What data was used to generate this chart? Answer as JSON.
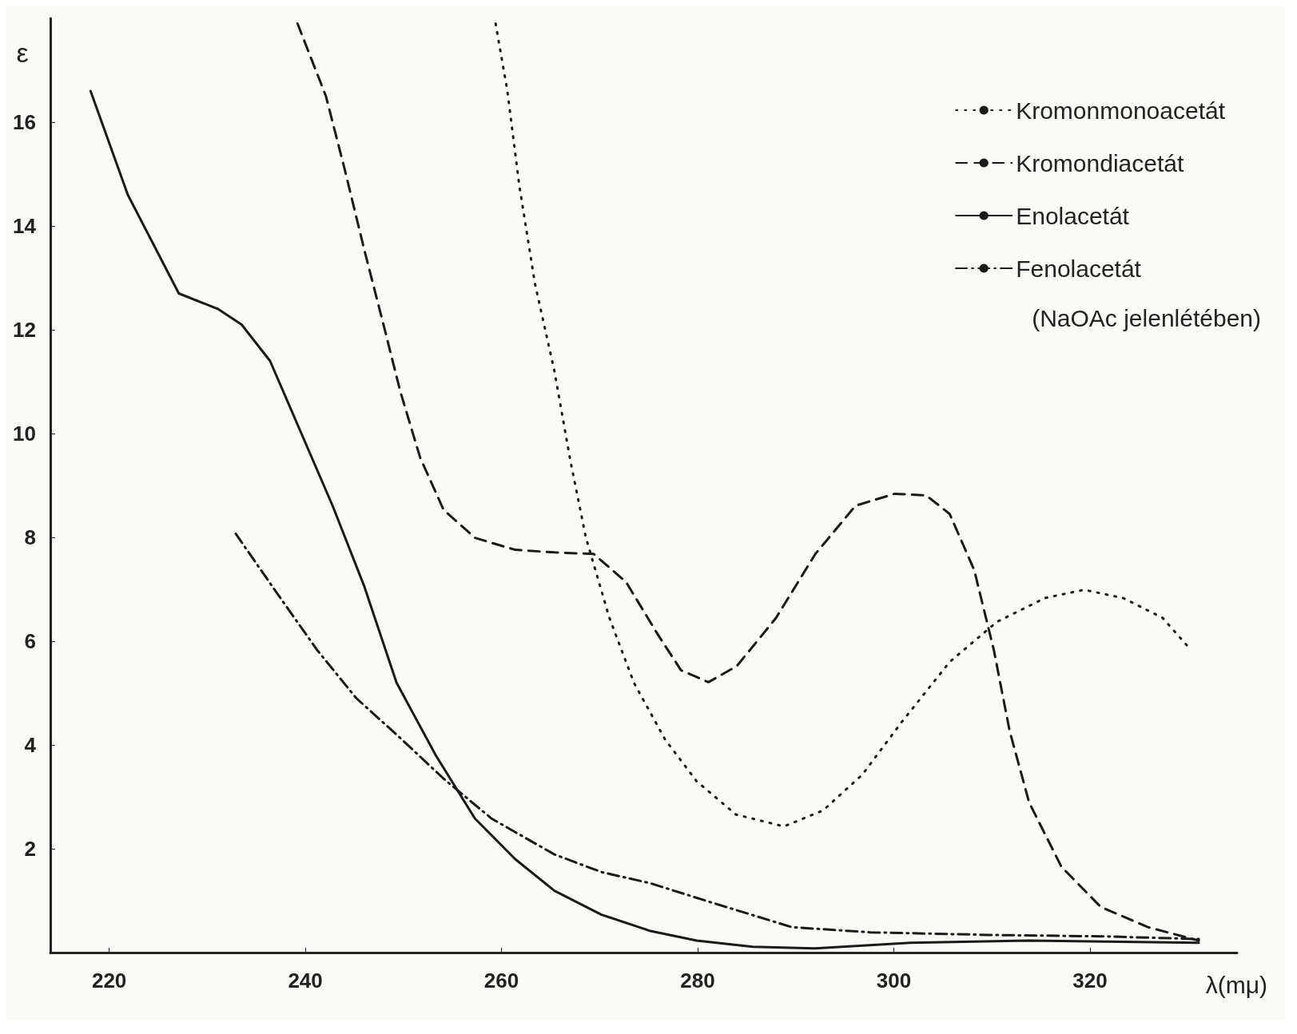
{
  "chart_data": {
    "type": "line",
    "xlabel": "λ(mμ)",
    "ylabel": "ε",
    "xlim": [
      214,
      335
    ],
    "ylim": [
      0,
      18
    ],
    "xticks": [
      220,
      240,
      260,
      280,
      300,
      320
    ],
    "yticks": [
      2,
      4,
      6,
      8,
      10,
      12,
      14,
      16
    ],
    "grid": false,
    "legend": "top right",
    "marker": "none",
    "annotations": [
      "(NaOAc jelenlétében)"
    ],
    "series": [
      {
        "name": "Kromonmonoacetát",
        "color": "#1a1a1a",
        "line_style": "dotted",
        "x": [
          259.4,
          260.6,
          261.8,
          263.4,
          265.4,
          267.0,
          268.6,
          271.0,
          273.5,
          276.7,
          279.9,
          283.9,
          288.8,
          292.8,
          296.8,
          300.8,
          305.7,
          310.5,
          315.4,
          319.4,
          323.4,
          327.4,
          330.3
        ],
        "values": [
          17.9,
          16.6,
          14.8,
          12.9,
          11.2,
          9.5,
          8.0,
          6.45,
          5.2,
          4.1,
          3.3,
          2.66,
          2.43,
          2.74,
          3.43,
          4.44,
          5.6,
          6.37,
          6.83,
          6.99,
          6.83,
          6.45,
          5.83
        ]
      },
      {
        "name": "Kromondiacetát",
        "color": "#1a1a1a",
        "line_style": "dashed",
        "x": [
          239.2,
          242.1,
          244.0,
          246.0,
          248.1,
          249.7,
          251.7,
          254.1,
          257.3,
          261.4,
          265.4,
          269.4,
          272.7,
          275.9,
          278.3,
          281.1,
          284.0,
          288.0,
          292.0,
          296.1,
          300.1,
          303.3,
          305.7,
          308.2,
          310.2,
          311.8,
          313.8,
          317.1,
          321.1,
          325.9,
          331.1
        ],
        "values": [
          17.9,
          16.5,
          15.1,
          13.55,
          12.0,
          10.8,
          9.54,
          8.53,
          7.99,
          7.76,
          7.71,
          7.68,
          7.14,
          6.14,
          5.44,
          5.21,
          5.52,
          6.45,
          7.68,
          8.61,
          8.84,
          8.81,
          8.45,
          7.37,
          5.83,
          4.28,
          2.89,
          1.65,
          0.88,
          0.49,
          0.23
        ]
      },
      {
        "name": "Enolacetát",
        "color": "#1a1a1a",
        "line_style": "solid",
        "x": [
          218.1,
          221.9,
          227.1,
          231.1,
          233.5,
          236.4,
          239.6,
          242.8,
          246.0,
          249.3,
          253.3,
          257.3,
          261.4,
          265.4,
          270.2,
          275.1,
          279.9,
          285.6,
          292.0,
          301.7,
          313.8,
          331.1
        ],
        "values": [
          16.6,
          14.6,
          12.7,
          12.4,
          12.1,
          11.4,
          10.0,
          8.6,
          7.06,
          5.2,
          3.8,
          2.58,
          1.8,
          1.19,
          0.73,
          0.42,
          0.23,
          0.11,
          0.08,
          0.19,
          0.23,
          0.19
        ]
      },
      {
        "name": "Fenolacetát",
        "color": "#1a1a1a",
        "line_style": "dashdot",
        "x": [
          232.9,
          237.2,
          241.2,
          245.2,
          249.3,
          254.1,
          259.0,
          265.4,
          270.2,
          275.1,
          281.5,
          289.6,
          297.6,
          309.7,
          321.8,
          331.1
        ],
        "values": [
          8.07,
          6.9,
          5.83,
          4.9,
          4.2,
          3.35,
          2.58,
          1.89,
          1.55,
          1.34,
          0.96,
          0.49,
          0.39,
          0.34,
          0.31,
          0.26
        ]
      }
    ]
  }
}
